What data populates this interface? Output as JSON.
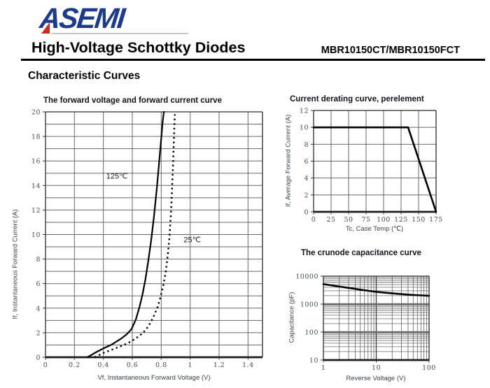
{
  "page": {
    "logo_text": "ASEMI",
    "title": "High-Voltage Schottky Diodes",
    "part_number": "MBR10150CT/MBR10150FCT",
    "section_heading": "Characteristic Curves"
  },
  "colors": {
    "logo_navy": "#1d3b8c",
    "logo_red": "#ce2a22",
    "text": "#000000",
    "tick_label": "#424e5a",
    "grid": "#666666",
    "curve": "#000000"
  },
  "chart_data": [
    {
      "id": "forward-voltage-forward-current",
      "type": "line",
      "title": "The forward voltage and forward current curve",
      "xlabel": "Vf, Instantaneous Forward Voltage (V)",
      "ylabel": "If, Instantaneous Forward Current (A)",
      "xlim": [
        0,
        1.5
      ],
      "ylim": [
        0,
        20
      ],
      "xgrid": 0.2,
      "ygrid": 1,
      "grid": "on",
      "legend": "inline-annotations",
      "xticks": [
        [
          0,
          "0"
        ],
        [
          0.2,
          "0.2"
        ],
        [
          0.4,
          "0.4"
        ],
        [
          0.6,
          "0.6"
        ],
        [
          0.8,
          "0.8"
        ],
        [
          1,
          "1"
        ],
        [
          1.2,
          "1.2"
        ],
        [
          1.4,
          "1.4"
        ]
      ],
      "yticks": [
        [
          0,
          "0"
        ],
        [
          2,
          "2"
        ],
        [
          4,
          "4"
        ],
        [
          6,
          "6"
        ],
        [
          8,
          "8"
        ],
        [
          10,
          "10"
        ],
        [
          12,
          "12"
        ],
        [
          14,
          "14"
        ],
        [
          16,
          "16"
        ],
        [
          18,
          "18"
        ],
        [
          20,
          "20"
        ]
      ],
      "series": [
        {
          "name": "125℃",
          "style": "solid",
          "points": [
            [
              0.29,
              0
            ],
            [
              0.34,
              0.35
            ],
            [
              0.4,
              0.72
            ],
            [
              0.46,
              1.05
            ],
            [
              0.52,
              1.5
            ],
            [
              0.56,
              1.85
            ],
            [
              0.595,
              2.3
            ],
            [
              0.625,
              3.1
            ],
            [
              0.65,
              4.1
            ],
            [
              0.67,
              5.1
            ],
            [
              0.69,
              6.3
            ],
            [
              0.71,
              7.8
            ],
            [
              0.73,
              9.5
            ],
            [
              0.75,
              11.5
            ],
            [
              0.77,
              13.8
            ],
            [
              0.785,
              15.8
            ],
            [
              0.8,
              17.8
            ],
            [
              0.81,
              19.2
            ],
            [
              0.818,
              20
            ]
          ]
        },
        {
          "name": "25℃",
          "style": "dotted",
          "points": [
            [
              0.34,
              0
            ],
            [
              0.4,
              0.35
            ],
            [
              0.46,
              0.62
            ],
            [
              0.52,
              0.9
            ],
            [
              0.57,
              1.15
            ],
            [
              0.62,
              1.5
            ],
            [
              0.66,
              1.85
            ],
            [
              0.695,
              2.25
            ],
            [
              0.725,
              2.8
            ],
            [
              0.75,
              3.4
            ],
            [
              0.775,
              4.1
            ],
            [
              0.795,
              4.9
            ],
            [
              0.815,
              5.9
            ],
            [
              0.832,
              7.0
            ],
            [
              0.845,
              8.3
            ],
            [
              0.857,
              9.8
            ],
            [
              0.866,
              11.5
            ],
            [
              0.874,
              13.4
            ],
            [
              0.881,
              15.5
            ],
            [
              0.887,
              17.5
            ],
            [
              0.892,
              19.2
            ],
            [
              0.894,
              19.8
            ]
          ]
        }
      ],
      "annotations": [
        {
          "text": "125℃",
          "x": 0.42,
          "y": 14.8
        },
        {
          "text": "25℃",
          "x": 0.955,
          "y": 9.6
        }
      ]
    },
    {
      "id": "current-derating",
      "type": "line",
      "title": "Current derating curve, perelement",
      "xlabel": "Tc, Case Temp (℃)",
      "ylabel": "If, Average Forward Current (A)",
      "xlim": [
        0,
        175
      ],
      "ylim": [
        0,
        12
      ],
      "xgrid": 25,
      "ygrid": 2,
      "grid": "on",
      "xticks": [
        [
          0,
          "0"
        ],
        [
          25,
          "25"
        ],
        [
          50,
          "50"
        ],
        [
          75,
          "75"
        ],
        [
          100,
          "100"
        ],
        [
          125,
          "125"
        ],
        [
          150,
          "150"
        ],
        [
          175,
          "175"
        ]
      ],
      "yticks": [
        [
          0,
          "0"
        ],
        [
          2,
          "2"
        ],
        [
          4,
          "4"
        ],
        [
          6,
          "6"
        ],
        [
          8,
          "8"
        ],
        [
          10,
          "10"
        ],
        [
          12,
          "12"
        ]
      ],
      "series": [
        {
          "name": "derating",
          "style": "thick",
          "points": [
            [
              0,
              10
            ],
            [
              135,
              10
            ],
            [
              175,
              0
            ]
          ]
        }
      ]
    },
    {
      "id": "crunode-capacitance",
      "type": "loglog",
      "title": "The crunode capacitance curve",
      "xlabel": "Reverse Voltage (V)",
      "ylabel": "Capacitance (pF)",
      "xlim": [
        1,
        100
      ],
      "ylim": [
        10,
        10000
      ],
      "grid": "log-minor",
      "xticks": [
        [
          1,
          "1"
        ],
        [
          10,
          "10"
        ],
        [
          100,
          "100"
        ]
      ],
      "yticks": [
        [
          10,
          "10"
        ],
        [
          100,
          "100"
        ],
        [
          1000,
          "1000"
        ],
        [
          10000,
          "10000"
        ]
      ],
      "series": [
        {
          "name": "capacitance",
          "style": "thick",
          "points": [
            [
              1,
              5200
            ],
            [
              1.5,
              4600
            ],
            [
              2,
              4250
            ],
            [
              3,
              3800
            ],
            [
              4,
              3500
            ],
            [
              5,
              3300
            ],
            [
              7,
              3000
            ],
            [
              10,
              2750
            ],
            [
              15,
              2550
            ],
            [
              20,
              2430
            ],
            [
              30,
              2280
            ],
            [
              50,
              2130
            ],
            [
              70,
              2050
            ],
            [
              100,
              1980
            ]
          ]
        }
      ]
    }
  ]
}
